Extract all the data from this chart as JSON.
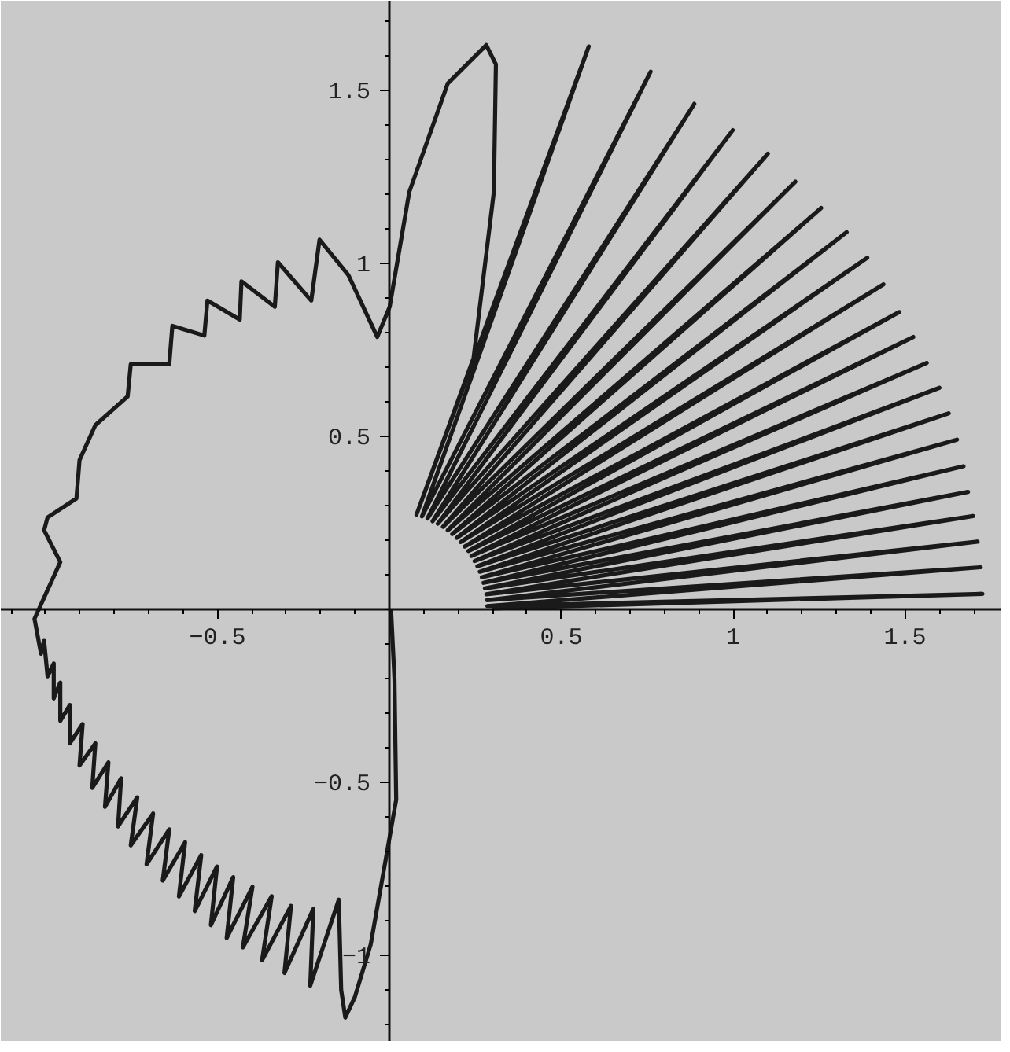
{
  "chart_data": {
    "type": "line",
    "xlim": [
      -1.13,
      1.78
    ],
    "ylim": [
      -1.25,
      1.76
    ],
    "xticks": [
      -0.5,
      0.5,
      1,
      1.5
    ],
    "yticks": [
      -1,
      -0.5,
      0.5,
      1,
      1.5
    ],
    "series": [
      {
        "color": "#1a1a1a",
        "x": [
          0.005,
          0.015,
          0.02,
          -0.01,
          -0.054,
          -0.1,
          -0.128,
          -0.14,
          -0.147,
          -0.23,
          -0.221,
          -0.305,
          -0.286,
          -0.37,
          -0.342,
          -0.426,
          -0.398,
          -0.473,
          -0.454,
          -0.519,
          -0.501,
          -0.566,
          -0.547,
          -0.612,
          -0.594,
          -0.659,
          -0.64,
          -0.706,
          -0.687,
          -0.752,
          -0.733,
          -0.789,
          -0.78,
          -0.827,
          -0.817,
          -0.864,
          -0.855,
          -0.901,
          -0.892,
          -0.929,
          -0.929,
          -0.957,
          -0.957,
          -0.976,
          -0.976,
          -0.994,
          -1.004,
          -1.013,
          -1.032,
          -0.957,
          -1.004,
          -0.994,
          -0.91,
          -0.901,
          -0.855,
          -0.761,
          -0.752,
          -0.64,
          -0.631,
          -0.538,
          -0.529,
          -0.435,
          -0.43,
          -0.333,
          -0.324,
          -0.227,
          -0.203,
          -0.119,
          -0.035,
          0.001,
          0.058,
          0.17,
          0.282,
          0.31,
          0.304,
          0.245,
          0.079,
          0.58,
          0.095,
          0.76,
          0.111,
          0.887,
          0.126,
          0.999,
          0.141,
          1.101,
          0.156,
          1.181,
          0.17,
          1.256,
          0.183,
          1.33,
          0.196,
          1.39,
          0.208,
          1.437,
          0.219,
          1.483,
          0.23,
          1.524,
          0.239,
          1.563,
          0.248,
          1.6,
          0.256,
          1.627,
          0.263,
          1.651,
          0.269,
          1.67,
          0.274,
          1.683,
          0.278,
          1.698,
          0.282,
          1.711,
          0.284,
          1.72,
          0.285,
          1.725,
          0.3
        ],
        "values": [
          0.0,
          -0.2,
          -0.55,
          -0.72,
          -0.968,
          -1.12,
          -1.18,
          -1.1,
          -0.839,
          -1.088,
          -0.866,
          -1.051,
          -0.857,
          -1.014,
          -0.829,
          -0.977,
          -0.802,
          -0.95,
          -0.774,
          -0.913,
          -0.743,
          -0.872,
          -0.71,
          -0.83,
          -0.673,
          -0.784,
          -0.636,
          -0.737,
          -0.59,
          -0.682,
          -0.543,
          -0.627,
          -0.488,
          -0.571,
          -0.442,
          -0.516,
          -0.387,
          -0.451,
          -0.331,
          -0.387,
          -0.276,
          -0.322,
          -0.211,
          -0.257,
          -0.156,
          -0.193,
          -0.091,
          -0.128,
          -0.027,
          0.137,
          0.229,
          0.266,
          0.321,
          0.432,
          0.533,
          0.616,
          0.709,
          0.709,
          0.82,
          0.792,
          0.893,
          0.838,
          0.949,
          0.875,
          1.004,
          0.893,
          1.069,
          0.967,
          0.788,
          0.875,
          1.207,
          1.521,
          1.632,
          1.576,
          1.207,
          0.727,
          0.274,
          1.628,
          0.269,
          1.555,
          0.263,
          1.462,
          0.255,
          1.386,
          0.248,
          1.318,
          0.239,
          1.237,
          0.229,
          1.161,
          0.218,
          1.091,
          0.207,
          1.017,
          0.195,
          0.94,
          0.182,
          0.86,
          0.169,
          0.788,
          0.155,
          0.713,
          0.14,
          0.641,
          0.125,
          0.567,
          0.109,
          0.491,
          0.093,
          0.414,
          0.077,
          0.34,
          0.061,
          0.27,
          0.044,
          0.196,
          0.027,
          0.122,
          0.01,
          0.045,
          0.003
        ]
      }
    ]
  }
}
